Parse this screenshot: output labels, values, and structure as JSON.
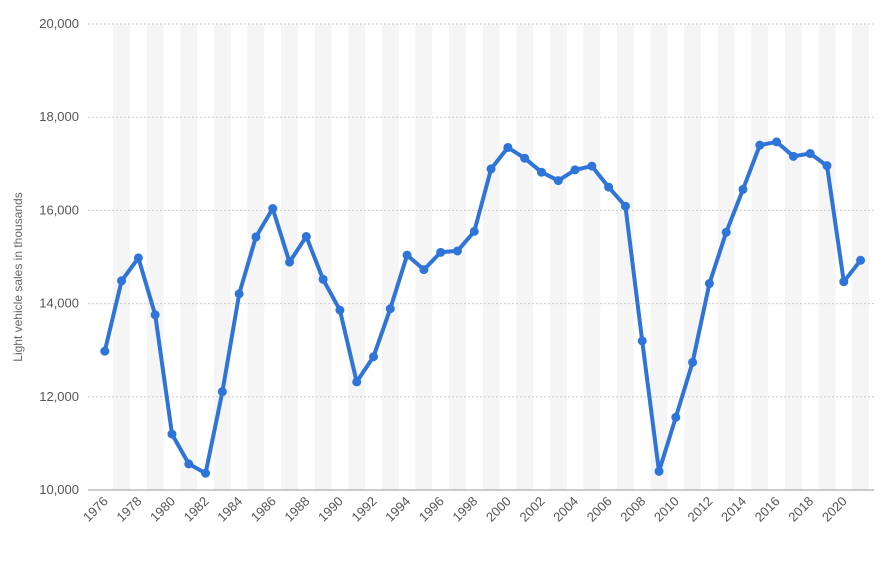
{
  "chart_data": {
    "type": "line",
    "ylabel": "Light vehicle sales in thousands",
    "xlabel": "",
    "ylim": [
      10000,
      20000
    ],
    "yticks": [
      10000,
      12000,
      14000,
      16000,
      18000,
      20000
    ],
    "ytick_labels": [
      "10,000",
      "12,000",
      "14,000",
      "16,000",
      "18,000",
      "20,000"
    ],
    "xticks": [
      1976,
      1978,
      1980,
      1982,
      1984,
      1986,
      1988,
      1990,
      1992,
      1994,
      1996,
      1998,
      2000,
      2002,
      2004,
      2006,
      2008,
      2010,
      2012,
      2014,
      2016,
      2018,
      2020
    ],
    "xtick_labels": [
      "1976",
      "1978",
      "1980",
      "1982",
      "1984",
      "1986",
      "1988",
      "1990",
      "1992",
      "1994",
      "1996",
      "1998",
      "2000",
      "2002",
      "2004",
      "2006",
      "2008",
      "2010",
      "2012",
      "2014",
      "2016",
      "2018",
      "2020"
    ],
    "grid": "horizontal dashed lines, alternating vertical year bands",
    "legend": "none",
    "series": [
      {
        "x": [
          1976,
          1977,
          1978,
          1979,
          1980,
          1981,
          1982,
          1983,
          1984,
          1985,
          1986,
          1987,
          1988,
          1989,
          1990,
          1991,
          1992,
          1993,
          1994,
          1995,
          1996,
          1997,
          1998,
          1999,
          2000,
          2001,
          2002,
          2003,
          2004,
          2005,
          2006,
          2007,
          2008,
          2009,
          2010,
          2011,
          2012,
          2013,
          2014,
          2015,
          2016,
          2017,
          2018,
          2019,
          2020,
          2021
        ],
        "values": [
          12980,
          14490,
          14980,
          13760,
          11200,
          10560,
          10360,
          12110,
          14210,
          15430,
          16040,
          14890,
          15440,
          14520,
          13860,
          12320,
          12860,
          13890,
          15040,
          14730,
          15100,
          15130,
          15550,
          16890,
          17350,
          17120,
          16820,
          16640,
          16870,
          16950,
          16500,
          16090,
          13200,
          10400,
          11560,
          12740,
          14430,
          15530,
          16450,
          17400,
          17470,
          17160,
          17220,
          16960,
          14470,
          14930
        ]
      }
    ]
  },
  "colors": {
    "line": "#2f74d8",
    "band": "#f5f5f5",
    "grid": "#cccccc",
    "axis": "#999999"
  }
}
